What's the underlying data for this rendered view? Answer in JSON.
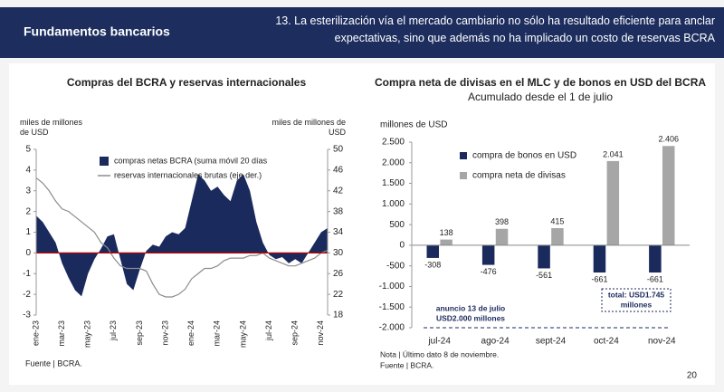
{
  "header": {
    "title": "Fundamentos bancarios",
    "subtitle": "13. La esterilización vía el mercado cambiario no sólo ha resultado eficiente para anclar expectativas, sino que además no ha implicado un costo de reservas BCRA"
  },
  "page_number": "20",
  "chart_data": [
    {
      "type": "area",
      "title": "Compras del BCRA y reservas internacionales",
      "y_label": "miles de millones de USD",
      "y2_label": "miles de millones de USD",
      "source": "Fuente | BCRA.",
      "categories": [
        "ene-23",
        null,
        null,
        null,
        "mar-23",
        null,
        null,
        null,
        "may-23",
        null,
        null,
        null,
        "jul-23",
        null,
        null,
        null,
        "sep-23",
        null,
        null,
        null,
        "nov-23",
        null,
        null,
        null,
        "ene-24",
        null,
        null,
        null,
        "mar-24",
        null,
        null,
        null,
        "may-24",
        null,
        null,
        null,
        "jul-24",
        null,
        null,
        null,
        "sep-24",
        null,
        null,
        null,
        "nov-24",
        null
      ],
      "series": [
        {
          "name": "compras netas BCRA (suma móvil 20 días",
          "color": "#1b2a5c",
          "values": [
            1.8,
            1.5,
            1.0,
            0.5,
            -0.5,
            -1.2,
            -1.8,
            -2.1,
            -1.0,
            -0.3,
            0.2,
            0.8,
            0.9,
            -0.3,
            -1.5,
            -1.8,
            -0.8,
            0.1,
            0.4,
            0.3,
            0.8,
            1.0,
            0.9,
            1.2,
            2.5,
            3.8,
            3.5,
            3.0,
            3.2,
            2.8,
            2.5,
            3.5,
            3.8,
            3.0,
            1.5,
            0.5,
            -0.1,
            -0.3,
            -0.2,
            -0.5,
            -0.3,
            -0.5,
            0.0,
            0.5,
            1.0,
            1.2
          ]
        },
        {
          "name": "reservas internacionales brutas (eje der.)",
          "color": "#8c8c8c",
          "axis": "y2",
          "values": [
            44.5,
            43.5,
            42,
            40,
            38.5,
            38,
            37,
            36,
            35,
            34,
            32,
            31,
            29,
            27.5,
            27,
            27,
            27,
            26.5,
            24,
            22,
            21.5,
            21.5,
            22,
            23,
            25,
            26,
            27,
            27,
            27.5,
            28.5,
            29,
            29,
            29,
            29.5,
            29.5,
            30,
            29,
            28.5,
            28,
            27.5,
            27.5,
            28,
            28.5,
            29,
            30,
            30.5
          ]
        }
      ],
      "ylim": [
        -3,
        5
      ],
      "yticks": [
        -3,
        -2,
        -1,
        0,
        1,
        2,
        3,
        4,
        5
      ],
      "y2lim": [
        18,
        50
      ],
      "y2ticks": [
        18,
        22,
        26,
        30,
        34,
        38,
        42,
        46,
        50
      ]
    },
    {
      "type": "bar",
      "title": "Compra neta de divisas en el MLC y de bonos en USD del BCRA",
      "subtitle": "Acumulado desde el 1 de julio",
      "y_label": "millones de USD",
      "note": "Nota | Último dato 8 de noviembre.",
      "source": "Fuente | BCRA.",
      "categories": [
        "jul-24",
        "ago-24",
        "sept-24",
        "oct-24",
        "nov-24"
      ],
      "series": [
        {
          "name": "compra de bonos en USD",
          "color": "#1b2a5c",
          "values": [
            -308,
            -476,
            -561,
            -661,
            -661
          ]
        },
        {
          "name": "compra neta de divisas",
          "color": "#a6a6a6",
          "values": [
            138,
            398,
            415,
            2041,
            2406
          ],
          "value_labels": [
            "138",
            "398",
            "415",
            "2.041",
            "2.406"
          ]
        }
      ],
      "ylim": [
        -2000,
        2500
      ],
      "yticks": [
        {
          "value": -2000,
          "label": "-2.000"
        },
        {
          "value": -1500,
          "label": "-1.500"
        },
        {
          "value": -1000,
          "label": "-1.000"
        },
        -500,
        0,
        500,
        {
          "value": 1000,
          "label": "1.000"
        },
        {
          "value": 1500,
          "label": "1.500"
        },
        {
          "value": 2000,
          "label": "2.000"
        },
        {
          "value": 2500,
          "label": "2.500"
        }
      ],
      "annotations": [
        "anuncio 13 de julio",
        "USD2.000 millones",
        "total: USD1.745",
        "millones"
      ]
    }
  ]
}
